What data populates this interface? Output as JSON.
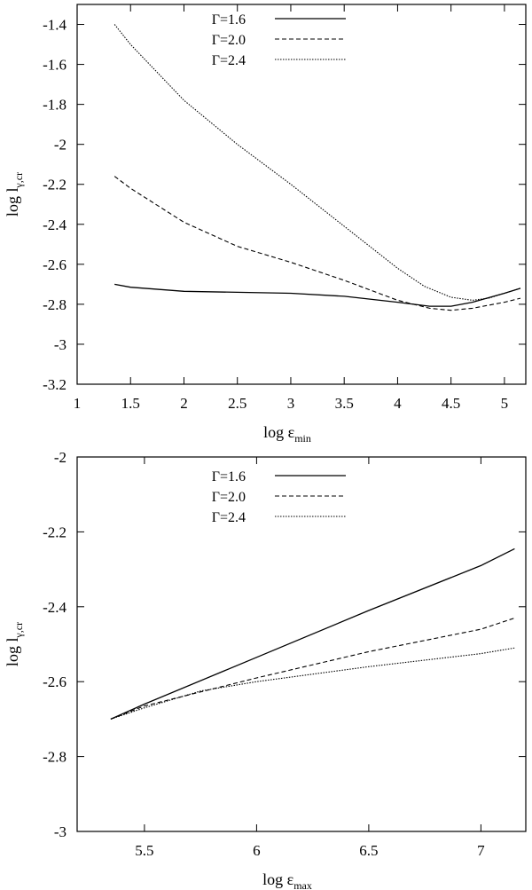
{
  "chart_data": [
    {
      "type": "line",
      "title": "",
      "xlabel": "log ε",
      "xlabel_sub": "min",
      "ylabel": "log l",
      "ylabel_sub": "γ,cr",
      "xlim": [
        1,
        5.2
      ],
      "ylim": [
        -3.2,
        -1.3
      ],
      "xticks": [
        1,
        1.5,
        2,
        2.5,
        3,
        3.5,
        4,
        4.5,
        5
      ],
      "xtick_labels": [
        "1",
        "1.5",
        "2",
        "2.5",
        "3",
        "3.5",
        "4",
        "4.5",
        "5"
      ],
      "yticks": [
        -3.2,
        -3,
        -2.8,
        -2.6,
        -2.4,
        -2.2,
        -2,
        -1.8,
        -1.6,
        -1.4
      ],
      "ytick_labels": [
        "-3.2",
        "-3",
        "-2.8",
        "-2.6",
        "-2.4",
        "-2.2",
        "-2",
        "-1.8",
        "-1.6",
        "-1.4"
      ],
      "grid": false,
      "legend_position": "top-center",
      "series": [
        {
          "name": "Γ=1.6",
          "style": "solid",
          "x": [
            1.35,
            1.5,
            2.0,
            2.5,
            3.0,
            3.5,
            4.0,
            4.3,
            4.5,
            4.7,
            5.0,
            5.15
          ],
          "y": [
            -2.7,
            -2.715,
            -2.735,
            -2.74,
            -2.745,
            -2.76,
            -2.79,
            -2.81,
            -2.81,
            -2.79,
            -2.745,
            -2.72
          ]
        },
        {
          "name": "Γ=2.0",
          "style": "dashed",
          "x": [
            1.35,
            1.5,
            2.0,
            2.5,
            3.0,
            3.5,
            4.0,
            4.3,
            4.5,
            4.7,
            5.0,
            5.15
          ],
          "y": [
            -2.16,
            -2.22,
            -2.39,
            -2.51,
            -2.59,
            -2.68,
            -2.78,
            -2.82,
            -2.83,
            -2.82,
            -2.79,
            -2.77
          ]
        },
        {
          "name": "Γ=2.4",
          "style": "dotted",
          "x": [
            1.35,
            1.5,
            2.0,
            2.5,
            3.0,
            3.5,
            4.0,
            4.25,
            4.5,
            4.7,
            4.85,
            5.0,
            5.15
          ],
          "y": [
            -1.4,
            -1.5,
            -1.78,
            -2.0,
            -2.2,
            -2.41,
            -2.62,
            -2.71,
            -2.765,
            -2.78,
            -2.77,
            -2.745,
            -2.72
          ]
        }
      ]
    },
    {
      "type": "line",
      "title": "",
      "xlabel": "log ε",
      "xlabel_sub": "max",
      "ylabel": "log l",
      "ylabel_sub": "γ,cr",
      "xlim": [
        5.2,
        7.2
      ],
      "ylim": [
        -3,
        -2
      ],
      "xticks": [
        5.5,
        6,
        6.5,
        7
      ],
      "xtick_labels": [
        "5.5",
        "6",
        "6.5",
        "7"
      ],
      "yticks": [
        -3,
        -2.8,
        -2.6,
        -2.4,
        -2.2,
        -2
      ],
      "ytick_labels": [
        "-3",
        "-2.8",
        "-2.6",
        "-2.4",
        "-2.2",
        "-2"
      ],
      "grid": false,
      "legend_position": "top-center",
      "series": [
        {
          "name": "Γ=1.6",
          "style": "solid",
          "x": [
            5.35,
            5.5,
            6.0,
            6.5,
            7.0,
            7.15
          ],
          "y": [
            -2.7,
            -2.66,
            -2.535,
            -2.41,
            -2.29,
            -2.245
          ]
        },
        {
          "name": "Γ=2.0",
          "style": "dashed",
          "x": [
            5.35,
            5.5,
            6.0,
            6.5,
            7.0,
            7.15
          ],
          "y": [
            -2.7,
            -2.665,
            -2.59,
            -2.52,
            -2.46,
            -2.43
          ]
        },
        {
          "name": "Γ=2.4",
          "style": "dotted",
          "x": [
            5.35,
            5.5,
            5.75,
            6.0,
            6.5,
            7.0,
            7.15
          ],
          "y": [
            -2.7,
            -2.67,
            -2.625,
            -2.6,
            -2.56,
            -2.525,
            -2.51
          ]
        }
      ]
    }
  ]
}
